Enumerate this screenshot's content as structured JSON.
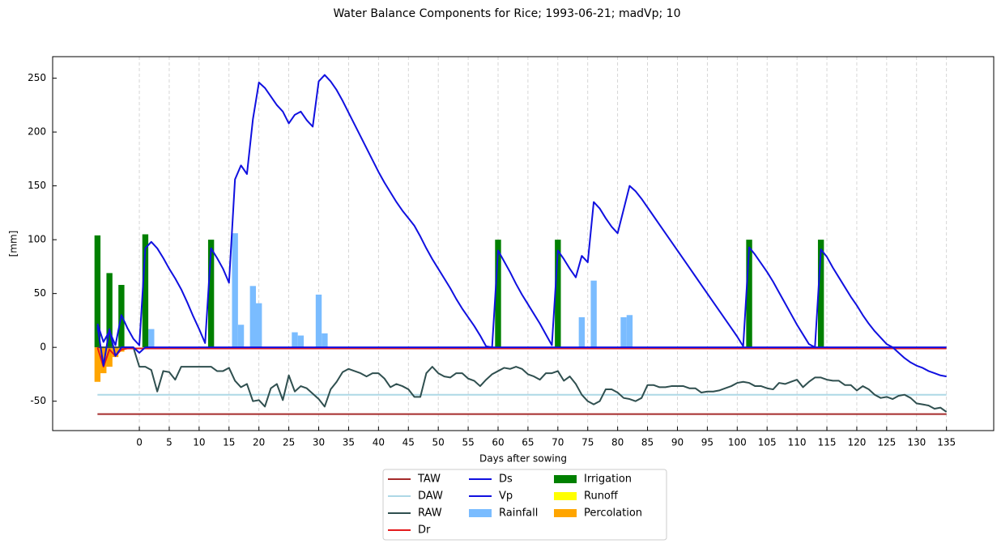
{
  "chart_data": {
    "type": "combo",
    "title": "Water Balance Components for Rice; 1993-06-21; madVp; 10",
    "xlabel": "Days after sowing",
    "ylabel": "[mm]",
    "xlim": [
      -14.5,
      142.9
    ],
    "ylim": [
      -77.3,
      270
    ],
    "xticks": [
      0,
      5,
      10,
      15,
      20,
      25,
      30,
      35,
      40,
      45,
      50,
      55,
      60,
      65,
      70,
      75,
      80,
      85,
      90,
      95,
      100,
      105,
      110,
      115,
      120,
      125,
      130,
      135
    ],
    "yticks": [
      -50,
      0,
      50,
      100,
      150,
      200,
      250
    ],
    "xgrid": true,
    "x": [
      -7,
      -6,
      -5,
      -4,
      -3,
      -2,
      -1,
      0,
      1,
      2,
      3,
      4,
      5,
      6,
      7,
      8,
      9,
      10,
      11,
      12,
      13,
      14,
      15,
      16,
      17,
      18,
      19,
      20,
      21,
      22,
      23,
      24,
      25,
      26,
      27,
      28,
      29,
      30,
      31,
      32,
      33,
      34,
      35,
      36,
      37,
      38,
      39,
      40,
      41,
      42,
      43,
      44,
      45,
      46,
      47,
      48,
      49,
      50,
      51,
      52,
      53,
      54,
      55,
      56,
      57,
      58,
      59,
      60,
      61,
      62,
      63,
      64,
      65,
      66,
      67,
      68,
      69,
      70,
      71,
      72,
      73,
      74,
      75,
      76,
      77,
      78,
      79,
      80,
      81,
      82,
      83,
      84,
      85,
      86,
      87,
      88,
      89,
      90,
      91,
      92,
      93,
      94,
      95,
      96,
      97,
      98,
      99,
      100,
      101,
      102,
      103,
      104,
      105,
      106,
      107,
      108,
      109,
      110,
      111,
      112,
      113,
      114,
      115,
      116,
      117,
      118,
      119,
      120,
      121,
      122,
      123,
      124,
      125,
      126,
      127,
      128,
      129,
      130,
      131,
      132,
      133,
      134,
      135
    ],
    "series": [
      {
        "name": "TAW",
        "mark": "line",
        "color": "#a52a2a",
        "x": [
          -7,
          135
        ],
        "values": [
          -62,
          -62
        ]
      },
      {
        "name": "DAW",
        "mark": "line",
        "color": "#add8e6",
        "x": [
          -7,
          135
        ],
        "values": [
          -44,
          -44
        ]
      },
      {
        "name": "RAW",
        "mark": "line",
        "color": "#2f4f4f",
        "values": [
          0,
          0,
          0,
          0,
          0,
          0,
          0,
          -18,
          -18,
          -21,
          -41,
          -22,
          -23,
          -30,
          -18,
          -18,
          -18,
          -18,
          -18,
          -18,
          -22,
          -22,
          -19,
          -31,
          -37,
          -34,
          -50,
          -49,
          -55,
          -38,
          -34,
          -49,
          -26,
          -41,
          -36,
          -38,
          -43,
          -48,
          -55,
          -39,
          -32,
          -23,
          -20,
          -22,
          -24,
          -27,
          -24,
          -24,
          -29,
          -37,
          -34,
          -36,
          -39,
          -46,
          -46,
          -24,
          -18,
          -24,
          -27,
          -28,
          -24,
          -24,
          -29,
          -31,
          -36,
          -30,
          -25,
          -22,
          -19,
          -20,
          -18,
          -20,
          -25,
          -27,
          -30,
          -24,
          -24,
          -22,
          -31,
          -27,
          -34,
          -44,
          -50,
          -53,
          -50,
          -39,
          -39,
          -42,
          -47,
          -48,
          -50,
          -47,
          -35,
          -35,
          -37,
          -37,
          -36,
          -36,
          -36,
          -38,
          -38,
          -42,
          -41,
          -41,
          -40,
          -38,
          -36,
          -33,
          -32,
          -33,
          -36,
          -36,
          -38,
          -39,
          -33,
          -34,
          -32,
          -30,
          -37,
          -32,
          -28,
          -28,
          -30,
          -31,
          -31,
          -35,
          -35,
          -40,
          -36,
          -39,
          -44,
          -47,
          -46,
          -48,
          -45,
          -44,
          -47,
          -52,
          -53,
          -54,
          -57,
          -56,
          -60
        ]
      },
      {
        "name": "Dr",
        "mark": "line",
        "color": "#e41a1c",
        "x": [
          -7,
          -6,
          -5,
          -4,
          -3,
          -2,
          135
        ],
        "values": [
          0,
          -18,
          -2,
          -8,
          -2,
          -1,
          -1
        ]
      },
      {
        "name": "Ds",
        "mark": "line",
        "color": "#1010e0",
        "x": [
          -7,
          -6,
          -5,
          -4,
          -3,
          -1,
          0,
          1,
          126,
          127,
          128,
          129,
          130,
          131,
          132,
          133,
          134,
          135
        ],
        "values": [
          20,
          -17,
          17,
          -8,
          0,
          0,
          -5,
          0,
          0,
          -5,
          -10,
          -14,
          -17,
          -19,
          -22,
          -24,
          -26,
          -27
        ]
      },
      {
        "name": "Vp",
        "mark": "line",
        "color": "#1010e0",
        "values": [
          22,
          5,
          15,
          2,
          30,
          18,
          8,
          2,
          92,
          98,
          92,
          83,
          73,
          64,
          54,
          42,
          29,
          17,
          4,
          92,
          83,
          73,
          60,
          156,
          169,
          161,
          212,
          246,
          241,
          233,
          225,
          219,
          208,
          216,
          219,
          211,
          205,
          247,
          253,
          247,
          239,
          229,
          218,
          207,
          196,
          185,
          174,
          163,
          153,
          144,
          135,
          127,
          120,
          113,
          103,
          92,
          82,
          73,
          64,
          55,
          45,
          36,
          28,
          20,
          11,
          1,
          0,
          90,
          80,
          70,
          59,
          49,
          40,
          31,
          22,
          12,
          2,
          90,
          82,
          73,
          65,
          85,
          79,
          135,
          129,
          120,
          112,
          106,
          128,
          150,
          145,
          138,
          130,
          122,
          114,
          106,
          98,
          90,
          82,
          74,
          66,
          58,
          50,
          42,
          34,
          26,
          18,
          10,
          1,
          93,
          86,
          78,
          70,
          61,
          51,
          41,
          31,
          21,
          12,
          3,
          0,
          91,
          84,
          74,
          65,
          56,
          47,
          39,
          30,
          22,
          15,
          9,
          3,
          0,
          0,
          0,
          0,
          0,
          0,
          0,
          0,
          0,
          0
        ]
      },
      {
        "name": "Rainfall",
        "mark": "bar",
        "color": "#7abcff",
        "x": [
          2,
          16,
          17,
          19,
          20,
          26,
          27,
          30,
          31,
          74,
          76,
          81,
          82
        ],
        "values": [
          17,
          106,
          21,
          57,
          41,
          14,
          11,
          49,
          13,
          28,
          62,
          28,
          30
        ]
      },
      {
        "name": "Irrigation",
        "mark": "bar",
        "color": "#008000",
        "x": [
          -7,
          -5,
          -3,
          1,
          12,
          60,
          70,
          102,
          114
        ],
        "values": [
          104,
          69,
          58,
          105,
          100,
          100,
          100,
          100,
          100
        ]
      },
      {
        "name": "Runoff",
        "mark": "bar",
        "color": "#ffff00",
        "x": [],
        "values": []
      },
      {
        "name": "Percolation",
        "mark": "bar",
        "color": "#ffa500",
        "x": [
          -7,
          -6,
          -5,
          -4,
          -3
        ],
        "values": [
          -32,
          -24,
          -18,
          -9,
          -4
        ]
      }
    ]
  }
}
